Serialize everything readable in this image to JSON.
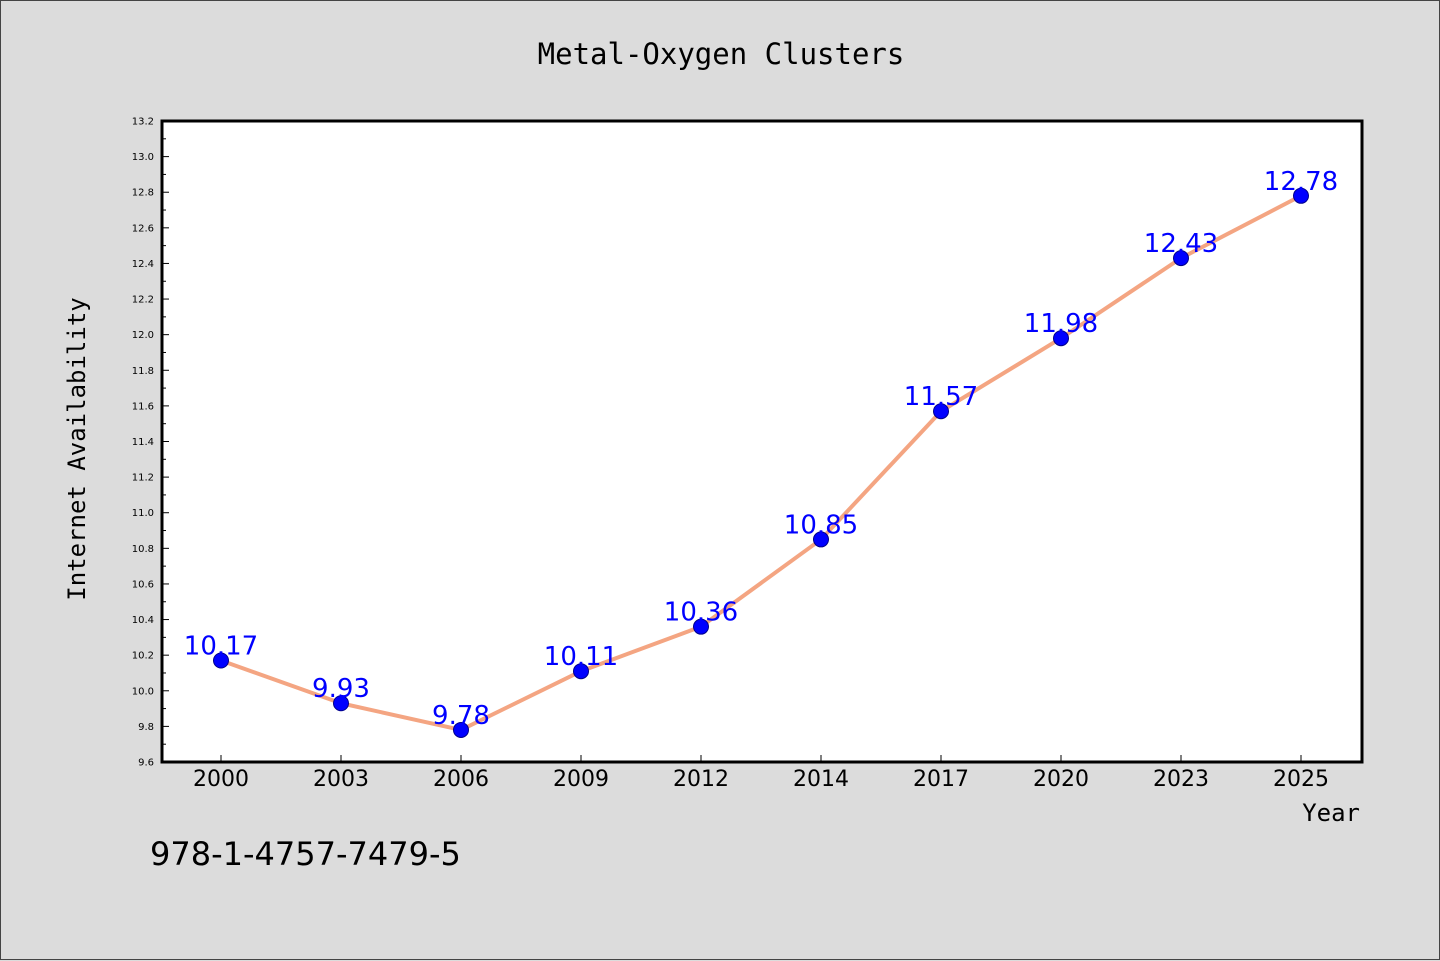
{
  "chart_data": {
    "type": "line",
    "title": "Metal-Oxygen Clusters",
    "xlabel": "Year",
    "ylabel": "Internet Availability",
    "categories": [
      "2000",
      "2003",
      "2006",
      "2009",
      "2012",
      "2014",
      "2017",
      "2020",
      "2023",
      "2025"
    ],
    "series": [
      {
        "values": [
          10.17,
          9.93,
          9.78,
          10.11,
          10.36,
          10.85,
          11.57,
          11.98,
          12.43,
          12.78
        ],
        "data_labels": [
          "10.17",
          "9.93",
          "9.78",
          "10.11",
          "10.36",
          "10.85",
          "11.57",
          "11.98",
          "12.43",
          "12.78"
        ]
      }
    ],
    "ylim": [
      9.6,
      13.2
    ],
    "yticks": [
      "9.6",
      "9.8",
      "10.0",
      "10.2",
      "10.4",
      "10.6",
      "10.8",
      "11.0",
      "11.2",
      "11.4",
      "11.6",
      "11.8",
      "12.0",
      "12.2",
      "12.4",
      "12.6",
      "12.8",
      "13.0",
      "13.2"
    ],
    "grid": false,
    "colors": {
      "line": "#f4a582",
      "marker": "#0000ff",
      "label": "#0000ff",
      "background": "#dcdcdc",
      "plot_area": "#ffffff"
    },
    "footnote": "978-1-4757-7479-5"
  }
}
